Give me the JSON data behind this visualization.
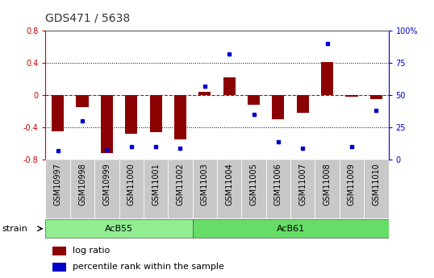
{
  "title": "GDS471 / 5638",
  "samples": [
    "GSM10997",
    "GSM10998",
    "GSM10999",
    "GSM11000",
    "GSM11001",
    "GSM11002",
    "GSM11003",
    "GSM11004",
    "GSM11005",
    "GSM11006",
    "GSM11007",
    "GSM11008",
    "GSM11009",
    "GSM11010"
  ],
  "log_ratio": [
    -0.45,
    -0.15,
    -0.72,
    -0.48,
    -0.46,
    -0.55,
    0.04,
    0.22,
    -0.12,
    -0.3,
    -0.22,
    0.41,
    -0.02,
    -0.05
  ],
  "percentile_rank": [
    7,
    30,
    8,
    10,
    10,
    9,
    57,
    82,
    35,
    14,
    9,
    90,
    10,
    38
  ],
  "groups": [
    {
      "label": "AcB55",
      "start": 0,
      "end": 5,
      "color": "#90EE90"
    },
    {
      "label": "AcB61",
      "start": 6,
      "end": 13,
      "color": "#66DD66"
    }
  ],
  "ylim_left": [
    -0.8,
    0.8
  ],
  "yticks_left": [
    -0.8,
    -0.4,
    0.0,
    0.4,
    0.8
  ],
  "yticks_right": [
    0,
    25,
    50,
    75,
    100
  ],
  "bar_color": "#8B0000",
  "dot_color": "#0000CC",
  "zero_line_color": "#CC0000",
  "grid_line_color": "#000000",
  "plot_bg_color": "#FFFFFF",
  "title_fontsize": 10,
  "tick_fontsize": 7,
  "label_fontsize": 8,
  "sample_box_color": "#C8C8C8"
}
